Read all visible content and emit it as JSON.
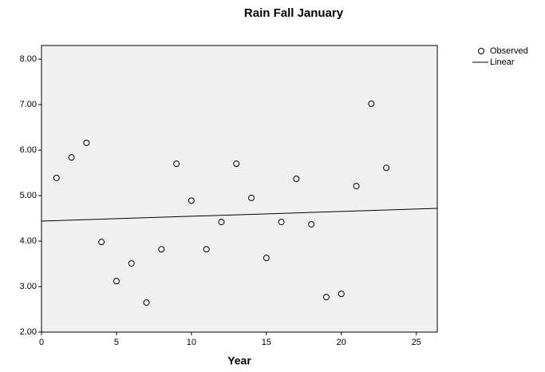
{
  "chart_data": {
    "type": "scatter",
    "title": "Rain Fall January",
    "x_label": "Year",
    "xlim": [
      0,
      26.4
    ],
    "ylim": [
      2,
      8.3
    ],
    "xticks": [
      0,
      5,
      10,
      15,
      20,
      25
    ],
    "yticks": [
      {
        "value": 2,
        "label": "2.00"
      },
      {
        "value": 3,
        "label": "3.00"
      },
      {
        "value": 4,
        "label": "4.00"
      },
      {
        "value": 5,
        "label": "5.00"
      },
      {
        "value": 6,
        "label": "6.00"
      },
      {
        "value": 7,
        "label": "7.00"
      },
      {
        "value": 8,
        "label": "8.00"
      }
    ],
    "grid": false,
    "legend": "right",
    "background": "#f0f0f0",
    "series": [
      {
        "name": "Observed",
        "type": "scatter",
        "color": "#000000",
        "x": [
          1,
          2,
          3,
          4,
          5,
          6,
          7,
          8,
          9,
          10,
          11,
          12,
          13,
          14,
          15,
          16,
          17,
          18,
          19,
          20,
          21,
          22,
          23
        ],
        "values": [
          5.39,
          5.84,
          6.16,
          3.98,
          3.12,
          3.51,
          2.65,
          3.82,
          5.7,
          4.89,
          3.82,
          4.42,
          5.7,
          4.95,
          3.63,
          4.42,
          5.37,
          4.37,
          2.77,
          2.84,
          5.21,
          7.02,
          5.61
        ]
      },
      {
        "name": "Linear",
        "type": "line",
        "color": "#000000",
        "x": [
          0,
          26.4
        ],
        "values": [
          4.44,
          4.72
        ]
      }
    ]
  }
}
